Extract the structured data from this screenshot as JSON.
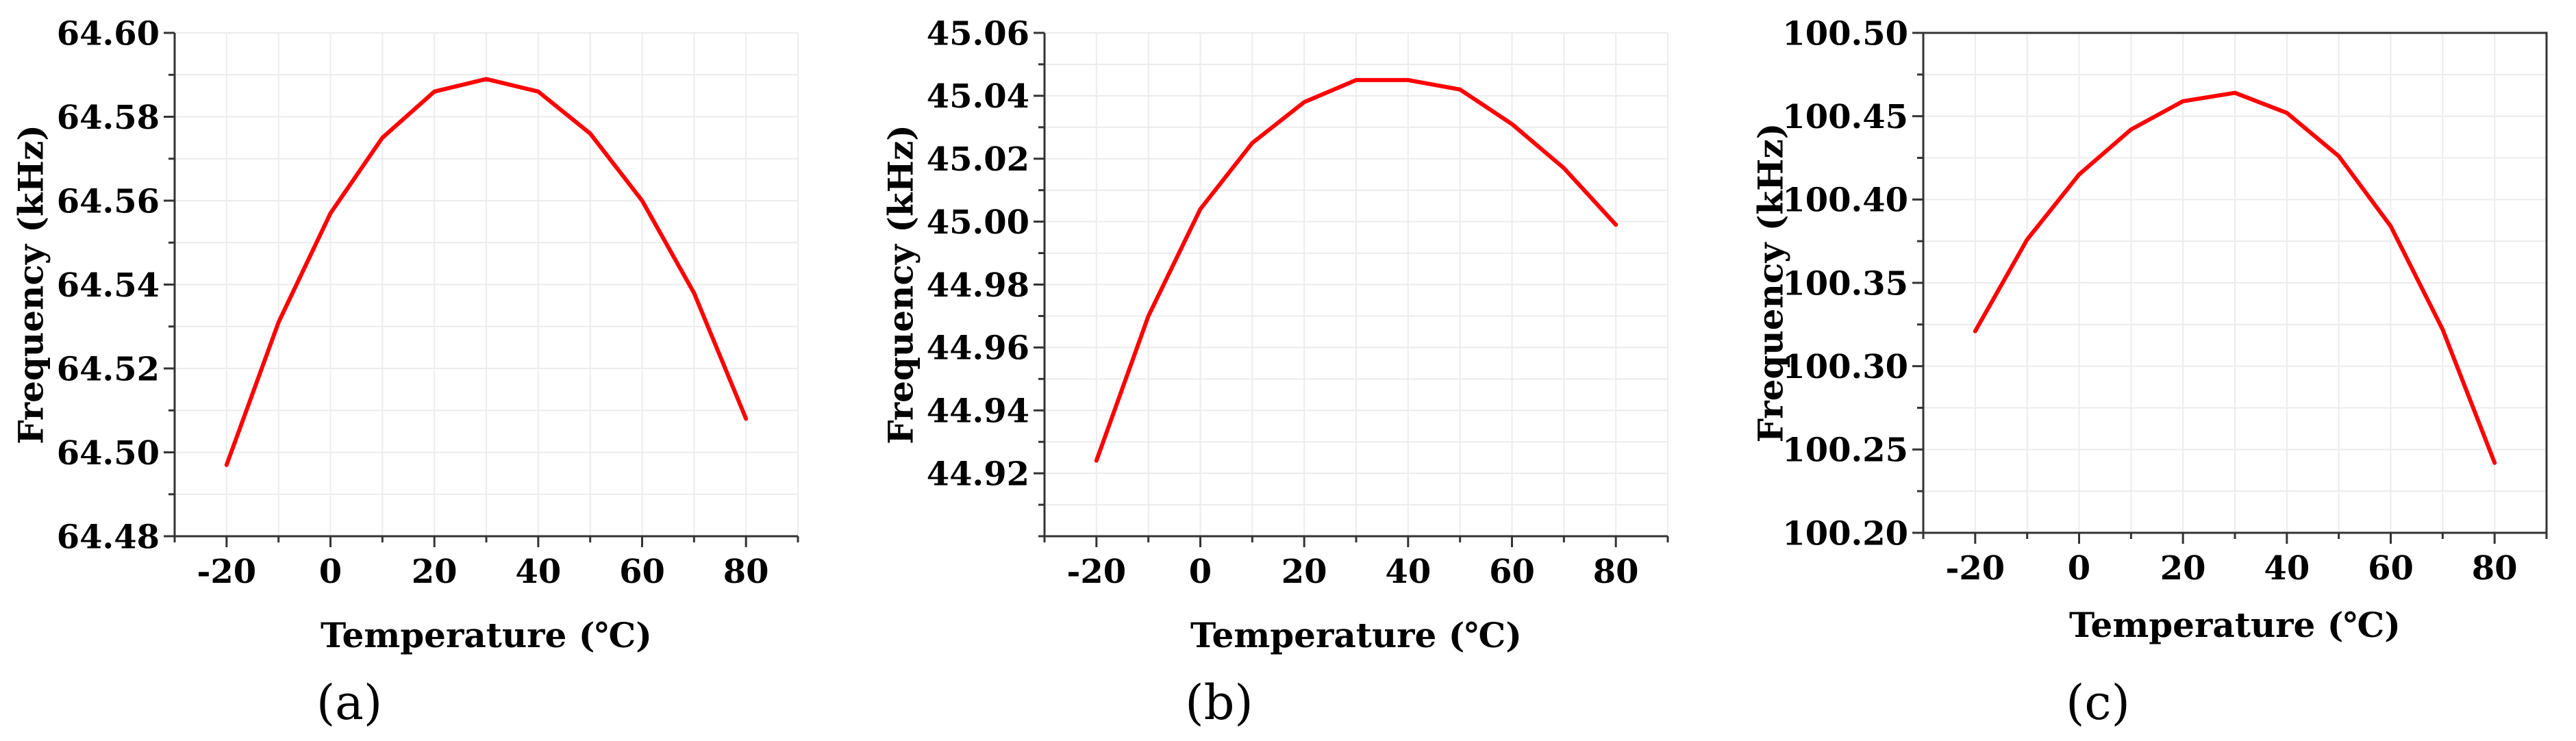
{
  "chart_data": [
    {
      "type": "line",
      "panel_label": "(a)",
      "xlabel": "Temperature (℃)",
      "ylabel": "Frequency (kHz)",
      "xlim": [
        -30,
        90
      ],
      "ylim": [
        64.48,
        64.6
      ],
      "x_ticks": [
        -20,
        0,
        20,
        40,
        60,
        80
      ],
      "y_ticks": [
        64.48,
        64.5,
        64.52,
        64.54,
        64.56,
        64.58,
        64.6
      ],
      "y_tick_decimals": 2,
      "grid": true,
      "line_color": "#ff0000",
      "x": [
        -20,
        -10,
        0,
        10,
        20,
        30,
        40,
        50,
        60,
        70,
        80
      ],
      "y": [
        64.497,
        64.531,
        64.557,
        64.575,
        64.586,
        64.589,
        64.586,
        64.576,
        64.56,
        64.538,
        64.508
      ]
    },
    {
      "type": "line",
      "panel_label": "(b)",
      "xlabel": "Temperature (℃)",
      "ylabel": "Frequency (kHz)",
      "xlim": [
        -30,
        90
      ],
      "ylim": [
        44.9,
        45.06
      ],
      "x_ticks": [
        -20,
        0,
        20,
        40,
        60,
        80
      ],
      "y_ticks": [
        44.92,
        44.94,
        44.96,
        44.98,
        45.0,
        45.02,
        45.04,
        45.06
      ],
      "y_tick_decimals": 2,
      "grid": true,
      "line_color": "#ff0000",
      "x": [
        -20,
        -10,
        0,
        10,
        20,
        30,
        40,
        50,
        60,
        70,
        80
      ],
      "y": [
        44.924,
        44.97,
        45.004,
        45.025,
        45.038,
        45.045,
        45.045,
        45.042,
        45.031,
        45.017,
        44.999
      ]
    },
    {
      "type": "line",
      "panel_label": "(c)",
      "xlabel": "Temperature (℃)",
      "ylabel": "Frequency (kHz)",
      "xlim": [
        -30,
        90
      ],
      "ylim": [
        100.2,
        100.5
      ],
      "x_ticks": [
        -20,
        0,
        20,
        40,
        60,
        80
      ],
      "y_ticks": [
        100.2,
        100.25,
        100.3,
        100.35,
        100.4,
        100.45,
        100.5
      ],
      "y_tick_decimals": 2,
      "grid": true,
      "line_color": "#ff0000",
      "x": [
        -20,
        -10,
        0,
        10,
        20,
        30,
        40,
        50,
        60,
        70,
        80
      ],
      "y": [
        100.321,
        100.376,
        100.415,
        100.442,
        100.459,
        100.464,
        100.452,
        100.426,
        100.384,
        100.322,
        100.242
      ]
    }
  ]
}
